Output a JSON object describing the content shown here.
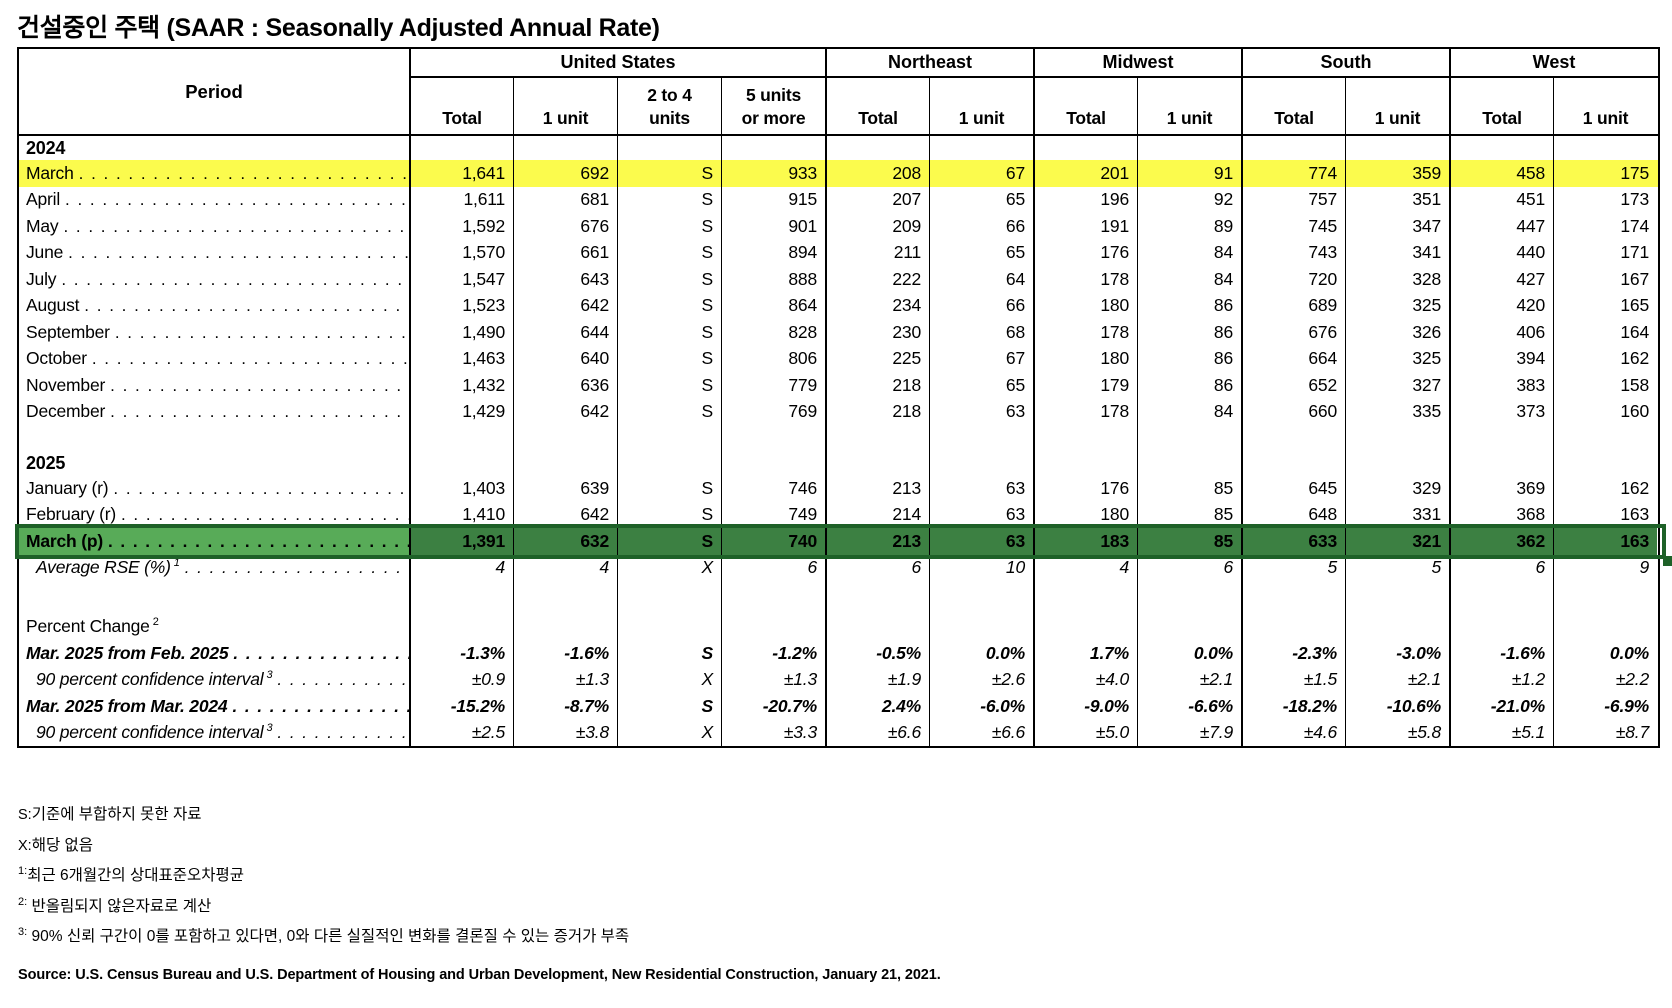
{
  "title": "건설중인 주택 (SAAR : Seasonally Adjusted Annual Rate)",
  "colors": {
    "highlight_yellow": "#fbfb4d",
    "selection_cell_fill": "#3c8042",
    "selection_label_fill": "#58ab58",
    "selection_border": "#1e6128"
  },
  "table": {
    "period_header": "Period",
    "groups": [
      {
        "label": "United States",
        "span": 4
      },
      {
        "label": "Northeast",
        "span": 2
      },
      {
        "label": "Midwest",
        "span": 2
      },
      {
        "label": "South",
        "span": 2
      },
      {
        "label": "West",
        "span": 2
      }
    ],
    "sub_headers": [
      "Total",
      "1 unit",
      "2 to 4\nunits",
      "5 units\nor more",
      "Total",
      "1 unit",
      "Total",
      "1 unit",
      "Total",
      "1 unit",
      "Total",
      "1 unit"
    ],
    "rows": [
      {
        "type": "year",
        "label": "2024"
      },
      {
        "type": "data",
        "label": "March",
        "highlight": "yellow",
        "values": [
          "1,641",
          "692",
          "S",
          "933",
          "208",
          "67",
          "201",
          "91",
          "774",
          "359",
          "458",
          "175"
        ]
      },
      {
        "type": "data",
        "label": "April",
        "values": [
          "1,611",
          "681",
          "S",
          "915",
          "207",
          "65",
          "196",
          "92",
          "757",
          "351",
          "451",
          "173"
        ]
      },
      {
        "type": "data",
        "label": "May",
        "values": [
          "1,592",
          "676",
          "S",
          "901",
          "209",
          "66",
          "191",
          "89",
          "745",
          "347",
          "447",
          "174"
        ]
      },
      {
        "type": "data",
        "label": "June",
        "values": [
          "1,570",
          "661",
          "S",
          "894",
          "211",
          "65",
          "176",
          "84",
          "743",
          "341",
          "440",
          "171"
        ]
      },
      {
        "type": "data",
        "label": "July",
        "values": [
          "1,547",
          "643",
          "S",
          "888",
          "222",
          "64",
          "178",
          "84",
          "720",
          "328",
          "427",
          "167"
        ]
      },
      {
        "type": "data",
        "label": "August",
        "values": [
          "1,523",
          "642",
          "S",
          "864",
          "234",
          "66",
          "180",
          "86",
          "689",
          "325",
          "420",
          "165"
        ]
      },
      {
        "type": "data",
        "label": "September",
        "values": [
          "1,490",
          "644",
          "S",
          "828",
          "230",
          "68",
          "178",
          "86",
          "676",
          "326",
          "406",
          "164"
        ]
      },
      {
        "type": "data",
        "label": "October",
        "values": [
          "1,463",
          "640",
          "S",
          "806",
          "225",
          "67",
          "180",
          "86",
          "664",
          "325",
          "394",
          "162"
        ]
      },
      {
        "type": "data",
        "label": "November",
        "values": [
          "1,432",
          "636",
          "S",
          "779",
          "218",
          "65",
          "179",
          "86",
          "652",
          "327",
          "383",
          "158"
        ]
      },
      {
        "type": "data",
        "label": "December",
        "values": [
          "1,429",
          "642",
          "S",
          "769",
          "218",
          "63",
          "178",
          "84",
          "660",
          "335",
          "373",
          "160"
        ]
      },
      {
        "type": "spacer"
      },
      {
        "type": "year",
        "label": "2025"
      },
      {
        "type": "data",
        "label": "January (r)",
        "values": [
          "1,403",
          "639",
          "S",
          "746",
          "213",
          "63",
          "176",
          "85",
          "645",
          "329",
          "369",
          "162"
        ]
      },
      {
        "type": "data",
        "label": "February (r)",
        "values": [
          "1,410",
          "642",
          "S",
          "749",
          "214",
          "63",
          "180",
          "85",
          "648",
          "331",
          "368",
          "163"
        ]
      },
      {
        "type": "data",
        "label": "March (p)",
        "highlight": "green",
        "values": [
          "1,391",
          "632",
          "S",
          "740",
          "213",
          "63",
          "183",
          "85",
          "633",
          "321",
          "362",
          "163"
        ]
      },
      {
        "type": "data",
        "label": "Average RSE (%)",
        "sup": "1",
        "style": "italic",
        "indent": true,
        "values": [
          "4",
          "4",
          "X",
          "6",
          "6",
          "10",
          "4",
          "6",
          "5",
          "5",
          "6",
          "9"
        ]
      },
      {
        "type": "spacer2"
      },
      {
        "type": "section",
        "label": "Percent Change",
        "sup": "2"
      },
      {
        "type": "data",
        "label": "Mar. 2025 from Feb. 2025",
        "style": "bold-italic",
        "values": [
          "-1.3%",
          "-1.6%",
          "S",
          "-1.2%",
          "-0.5%",
          "0.0%",
          "1.7%",
          "0.0%",
          "-2.3%",
          "-3.0%",
          "-1.6%",
          "0.0%"
        ]
      },
      {
        "type": "data",
        "label": "90 percent confidence interval",
        "sup": "3",
        "style": "italic",
        "indent": true,
        "values": [
          "±0.9",
          "±1.3",
          "X",
          "±1.3",
          "±1.9",
          "±2.6",
          "±4.0",
          "±2.1",
          "±1.5",
          "±2.1",
          "±1.2",
          "±2.2"
        ]
      },
      {
        "type": "data",
        "label": "Mar. 2025 from Mar. 2024",
        "style": "bold-italic",
        "values": [
          "-15.2%",
          "-8.7%",
          "S",
          "-20.7%",
          "2.4%",
          "-6.0%",
          "-9.0%",
          "-6.6%",
          "-18.2%",
          "-10.6%",
          "-21.0%",
          "-6.9%"
        ]
      },
      {
        "type": "data",
        "label": "90 percent confidence interval",
        "sup": "3",
        "style": "italic",
        "indent": true,
        "values": [
          "±2.5",
          "±3.8",
          "X",
          "±3.3",
          "±6.6",
          "±6.6",
          "±5.0",
          "±7.9",
          "±4.6",
          "±5.8",
          "±5.1",
          "±8.7"
        ]
      }
    ]
  },
  "footnotes": [
    {
      "marker": "S:",
      "superscript": false,
      "text": "기준에 부합하지 못한 자료"
    },
    {
      "marker": "X:",
      "superscript": false,
      "text": "해당 없음"
    },
    {
      "marker": "1:",
      "superscript": true,
      "text": "최근 6개월간의 상대표준오차평균"
    },
    {
      "marker": "2:",
      "superscript": true,
      "text": " 반올림되지 않은자료로 계산"
    },
    {
      "marker": "3:",
      "superscript": true,
      "text": " 90% 신뢰 구간이 0를 포함하고 있다면, 0와 다른 실질적인 변화를 결론질 수 있는 증거가 부족"
    }
  ],
  "source": "Source: U.S. Census Bureau and U.S. Department of Housing and Urban Development, New Residential Construction, January 21, 2021."
}
